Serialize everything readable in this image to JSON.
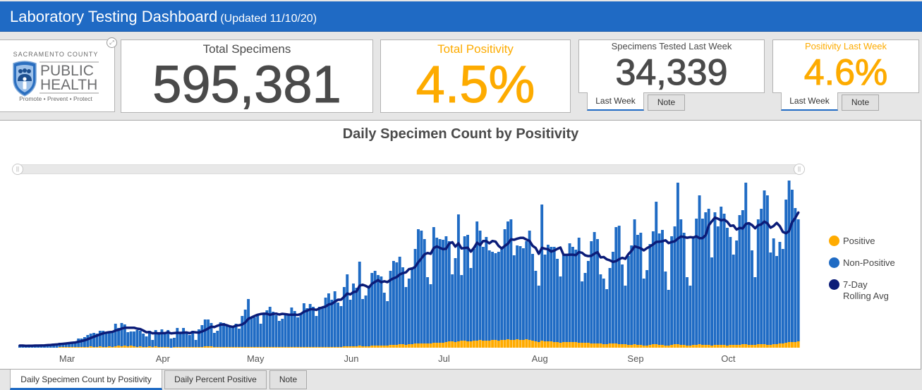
{
  "header": {
    "title": "Laboratory Testing Dashboard",
    "updated": "(Updated 11/10/20)"
  },
  "logo": {
    "org": "SACRAMENTO COUNTY",
    "line1": "PUBLIC",
    "line2": "HEALTH",
    "tagline": "Promote • Prevent • Protect",
    "expand_icon": "expand-icon"
  },
  "cards": {
    "total_specimens": {
      "title": "Total Specimens",
      "value": "595,381"
    },
    "total_positivity": {
      "title": "Total Positivity",
      "value": "4.5%"
    },
    "specimens_last_week": {
      "title": "Specimens Tested Last Week",
      "value": "34,339",
      "tabs": [
        "Last Week",
        "Note"
      ],
      "active_tab": "Last Week"
    },
    "positivity_last_week": {
      "title": "Positivity Last Week",
      "value": "4.6%",
      "tabs": [
        "Last Week",
        "Note"
      ],
      "active_tab": "Last Week"
    }
  },
  "chart_panel": {
    "tabs": [
      "Daily Specimen Count by Positivity",
      "Daily Percent Positive",
      "Note"
    ],
    "active_tab": "Daily Specimen Count by Positivity"
  },
  "colors": {
    "header": "#1f6ac4",
    "accent_orange": "#fdab00",
    "value_gray": "#4a4a4a"
  },
  "chart_data": {
    "type": "bar",
    "stacked": true,
    "title": "Daily Specimen Count by Positivity",
    "xlabel": "",
    "ylabel": "",
    "x_unit": "day index (daily bars)",
    "x_ticks": [
      {
        "label": "Mar",
        "day": 16
      },
      {
        "label": "Apr",
        "day": 47
      },
      {
        "label": "May",
        "day": 77
      },
      {
        "label": "Jun",
        "day": 108
      },
      {
        "label": "Jul",
        "day": 138
      },
      {
        "label": "Aug",
        "day": 169
      },
      {
        "label": "Sep",
        "day": 200
      },
      {
        "label": "Oct",
        "day": 230
      }
    ],
    "ylim": [
      0,
      6000
    ],
    "grid": false,
    "legend_position": "right",
    "series": [
      {
        "name": "Positive",
        "color": "#ffab00",
        "values": [
          0,
          0,
          0,
          0,
          0,
          0,
          0,
          0,
          0,
          0,
          0,
          0,
          0,
          25,
          25,
          25,
          25,
          25,
          25,
          25,
          25,
          25,
          25,
          50,
          25,
          25,
          50,
          25,
          25,
          50,
          25,
          50,
          75,
          50,
          75,
          50,
          75,
          50,
          25,
          50,
          25,
          25,
          50,
          25,
          50,
          25,
          25,
          25,
          25,
          0,
          25,
          25,
          25,
          25,
          25,
          25,
          25,
          25,
          25,
          25,
          50,
          50,
          50,
          25,
          25,
          25,
          25,
          25,
          25,
          25,
          25,
          25,
          25,
          25,
          25,
          25,
          25,
          25,
          25,
          25,
          25,
          25,
          25,
          25,
          25,
          25,
          25,
          25,
          25,
          25,
          25,
          25,
          25,
          25,
          25,
          25,
          25,
          25,
          25,
          25,
          25,
          25,
          25,
          25,
          25,
          50,
          50,
          50,
          50,
          50,
          75,
          50,
          50,
          50,
          75,
          75,
          75,
          75,
          75,
          75,
          100,
          100,
          100,
          125,
          125,
          100,
          125,
          125,
          150,
          150,
          150,
          150,
          150,
          150,
          175,
          175,
          175,
          175,
          200,
          225,
          225,
          200,
          225,
          250,
          250,
          225,
          225,
          250,
          250,
          275,
          250,
          250,
          250,
          275,
          275,
          250,
          275,
          275,
          300,
          275,
          275,
          300,
          275,
          275,
          300,
          275,
          250,
          225,
          200,
          250,
          225,
          225,
          225,
          200,
          200,
          175,
          200,
          200,
          200,
          200,
          200,
          175,
          175,
          175,
          175,
          150,
          150,
          150,
          150,
          125,
          125,
          150,
          150,
          150,
          125,
          125,
          125,
          100,
          100,
          125,
          100,
          100,
          75,
          75,
          100,
          125,
          125,
          100,
          100,
          75,
          75,
          100,
          125,
          125,
          100,
          100,
          75,
          75,
          100,
          100,
          125,
          100,
          100,
          100,
          75,
          100,
          100,
          100,
          100,
          75,
          100,
          100,
          100,
          100,
          125,
          125,
          100,
          100,
          100,
          125,
          125,
          125,
          100,
          100,
          125,
          125,
          150,
          150,
          175,
          200,
          200,
          200,
          225
        ]
      },
      {
        "name": "Non-Positive",
        "color": "#1f6bc4",
        "values": [
          75,
          75,
          50,
          75,
          75,
          100,
          75,
          100,
          100,
          100,
          125,
          150,
          150,
          150,
          150,
          150,
          175,
          175,
          200,
          300,
          300,
          350,
          425,
          450,
          500,
          475,
          550,
          575,
          525,
          525,
          550,
          800,
          625,
          825,
          750,
          500,
          500,
          525,
          600,
          550,
          475,
          375,
          550,
          250,
          575,
          525,
          625,
          475,
          600,
          325,
          325,
          675,
          500,
          675,
          525,
          425,
          575,
          250,
          625,
          775,
          950,
          950,
          825,
          500,
          575,
          875,
          850,
          775,
          700,
          700,
          825,
          650,
          1100,
          1325,
          1700,
          1025,
          1050,
          1150,
          825,
          1200,
          1300,
          1425,
          1250,
          1125,
          925,
          1000,
          1125,
          1175,
          1400,
          1275,
          1050,
          1175,
          1550,
          1375,
          1525,
          1425,
          1100,
          1425,
          1425,
          1750,
          1900,
          1675,
          1975,
          1575,
          1450,
          2100,
          2550,
          1650,
          2225,
          2075,
          2975,
          1675,
          1800,
          2150,
          2575,
          2650,
          2500,
          2450,
          1875,
          1575,
          2625,
          2975,
          2925,
          3100,
          2725,
          2050,
          2325,
          2725,
          3350,
          4050,
          4000,
          3700,
          2350,
          2100,
          4100,
          3725,
          3675,
          3650,
          3750,
          3550,
          2375,
          2975,
          4500,
          2325,
          3700,
          3775,
          2600,
          3250,
          4225,
          3875,
          3325,
          3675,
          3200,
          3125,
          3075,
          3150,
          3250,
          3925,
          4175,
          4275,
          3000,
          3325,
          3325,
          3250,
          3475,
          3875,
          3075,
          2500,
          2000,
          4825,
          3075,
          3425,
          3350,
          3375,
          2950,
          2350,
          3075,
          3075,
          3500,
          3375,
          3275,
          3725,
          2175,
          2475,
          2900,
          3625,
          3950,
          3700,
          2450,
          2325,
          1950,
          2675,
          3250,
          4125,
          4200,
          2825,
          2075,
          3150,
          3525,
          4425,
          3900,
          3975,
          2375,
          2675,
          3575,
          4000,
          5050,
          3950,
          4075,
          2625,
          1975,
          3850,
          4175,
          5725,
          4450,
          3975,
          2425,
          2125,
          3775,
          4475,
          5275,
          4475,
          4700,
          4825,
          3125,
          4700,
          4200,
          4900,
          4650,
          4175,
          3825,
          3200,
          3700,
          4600,
          4750,
          5725,
          4350,
          3350,
          2400,
          4425,
          4800,
          5450,
          5300,
          3275,
          3750,
          3125,
          3600,
          3350,
          5075,
          5725,
          5400,
          4750,
          4325
        ]
      },
      {
        "name": "7-Day Rolling Avg",
        "type": "line",
        "color": "#0b1c78",
        "window": 7,
        "of": "Positive + Non-Positive"
      }
    ]
  }
}
